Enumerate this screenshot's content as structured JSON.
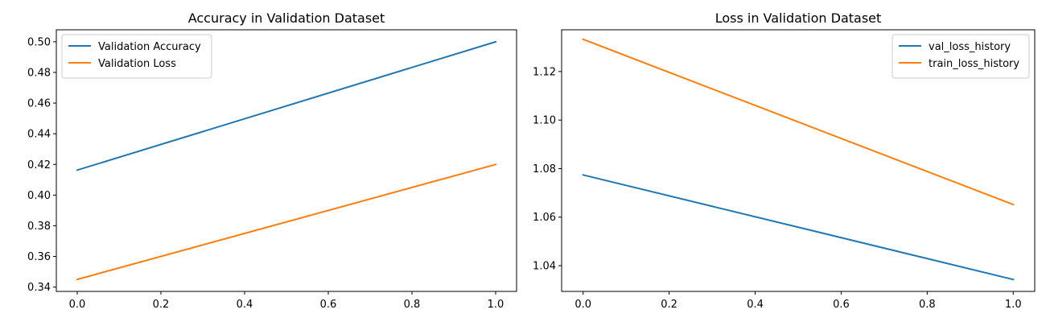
{
  "chart_data": [
    {
      "type": "line",
      "title": "Accuracy in Validation Dataset",
      "xlabel": "",
      "ylabel": "",
      "xlim": [
        -0.05,
        1.05
      ],
      "ylim": [
        0.3372,
        0.5078
      ],
      "xticks": [
        0.0,
        0.2,
        0.4,
        0.6,
        0.8,
        1.0
      ],
      "xtick_labels": [
        "0.0",
        "0.2",
        "0.4",
        "0.6",
        "0.8",
        "1.0"
      ],
      "yticks": [
        0.34,
        0.36,
        0.38,
        0.4,
        0.42,
        0.44,
        0.46,
        0.48,
        0.5
      ],
      "ytick_labels": [
        "0.34",
        "0.36",
        "0.38",
        "0.40",
        "0.42",
        "0.44",
        "0.46",
        "0.48",
        "0.50"
      ],
      "grid": false,
      "legend_position": "top-left",
      "series": [
        {
          "name": "Validation Accuracy",
          "color": "#1f77b4",
          "x": [
            0,
            1
          ],
          "y": [
            0.4163,
            0.5
          ]
        },
        {
          "name": "Validation Loss",
          "color": "#ff7f0e",
          "x": [
            0,
            1
          ],
          "y": [
            0.345,
            0.42
          ]
        }
      ]
    },
    {
      "type": "line",
      "title": "Loss in Validation Dataset",
      "xlabel": "",
      "ylabel": "",
      "xlim": [
        -0.05,
        1.05
      ],
      "ylim": [
        1.0294,
        1.1372
      ],
      "xticks": [
        0.0,
        0.2,
        0.4,
        0.6,
        0.8,
        1.0
      ],
      "xtick_labels": [
        "0.0",
        "0.2",
        "0.4",
        "0.6",
        "0.8",
        "1.0"
      ],
      "yticks": [
        1.04,
        1.06,
        1.08,
        1.1,
        1.12
      ],
      "ytick_labels": [
        "1.04",
        "1.06",
        "1.08",
        "1.10",
        "1.12"
      ],
      "grid": false,
      "legend_position": "top-right",
      "series": [
        {
          "name": "val_loss_history",
          "color": "#1f77b4",
          "x": [
            0,
            1
          ],
          "y": [
            1.0774,
            1.0343
          ]
        },
        {
          "name": "train_loss_history",
          "color": "#ff7f0e",
          "x": [
            0,
            1
          ],
          "y": [
            1.1333,
            1.0652
          ]
        }
      ]
    }
  ]
}
